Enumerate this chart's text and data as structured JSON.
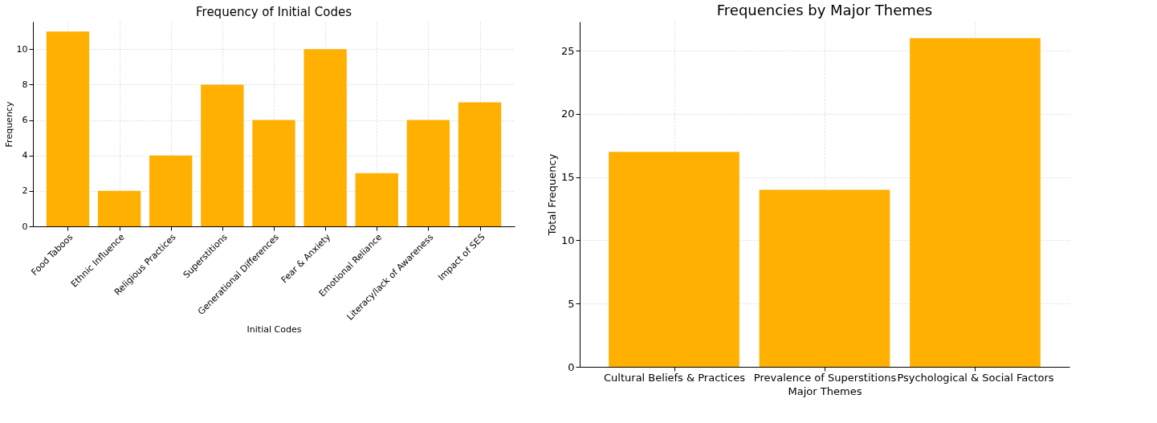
{
  "chart_data": [
    {
      "type": "bar",
      "title": "Frequency of Initial Codes",
      "xlabel": "Initial Codes",
      "ylabel": "Frequency",
      "categories": [
        "Food Taboos",
        "Ethnic Influence",
        "Religious Practices",
        "Superstitions",
        "Generational Differences",
        "Fear & Anxiety",
        "Emotional Reliance",
        "Literacy/lack of Awareness",
        "Impact of SES"
      ],
      "values": [
        11,
        2,
        4,
        8,
        6,
        10,
        3,
        6,
        7
      ],
      "color": "#ffb000",
      "ylim": [
        0,
        11.55
      ],
      "yticks": [
        0,
        2,
        4,
        6,
        8,
        10
      ],
      "grid": true
    },
    {
      "type": "bar",
      "title": "Frequencies by Major Themes",
      "xlabel": "Major Themes",
      "ylabel": "Total Frequency",
      "categories": [
        "Cultural Beliefs & Practices",
        "Prevalence of Superstitions",
        "Psychological & Social Factors"
      ],
      "values": [
        17,
        14,
        26
      ],
      "color": "#ffb000",
      "ylim": [
        0,
        27.3
      ],
      "yticks": [
        0,
        5,
        10,
        15,
        20,
        25
      ],
      "grid": true
    }
  ]
}
